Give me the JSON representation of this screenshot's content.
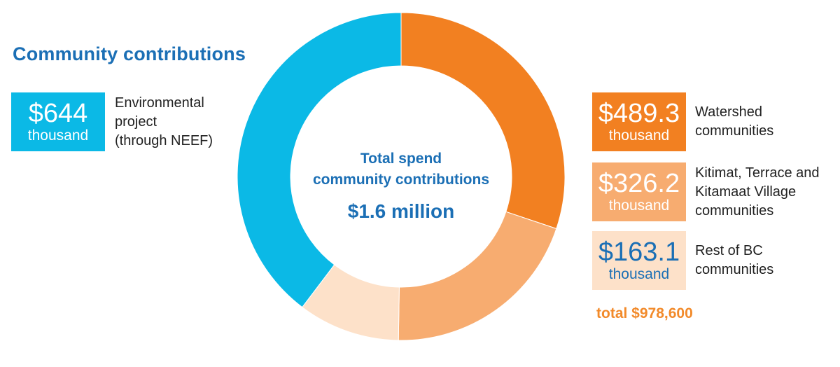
{
  "title": "Community contributions",
  "center": {
    "line1": "Total spend",
    "line2": "community contributions",
    "total": "$1.6 million"
  },
  "colors": {
    "blue": "#0bb9e6",
    "orange_dark": "#f28021",
    "orange_mid": "#f7ac70",
    "orange_light": "#fde1c9",
    "text_blue": "#1b6fb5"
  },
  "boxes": [
    {
      "amount": "$644",
      "unit": "thousand",
      "label": "Environmental\nproject\n(through NEEF)"
    },
    {
      "amount": "$489.3",
      "unit": "thousand",
      "label": "Watershed\ncommunities"
    },
    {
      "amount": "$326.2",
      "unit": "thousand",
      "label": "Kitimat, Terrace and\nKitamaat Village\ncommunities"
    },
    {
      "amount": "$163.1",
      "unit": "thousand",
      "label": "Rest of BC\ncommunities"
    }
  ],
  "total_note": "total $978,600",
  "chart_data": {
    "type": "pie",
    "donut": true,
    "categories": [
      "Watershed communities",
      "Kitimat, Terrace and Kitamaat Village communities",
      "Rest of BC communities",
      "Environmental project (through NEEF)"
    ],
    "values": [
      489.3,
      326.2,
      163.1,
      644
    ],
    "unit": "thousand $",
    "colors": [
      "#f28021",
      "#f7ac70",
      "#fde1c9",
      "#0bb9e6"
    ],
    "start": "top, clockwise"
  }
}
